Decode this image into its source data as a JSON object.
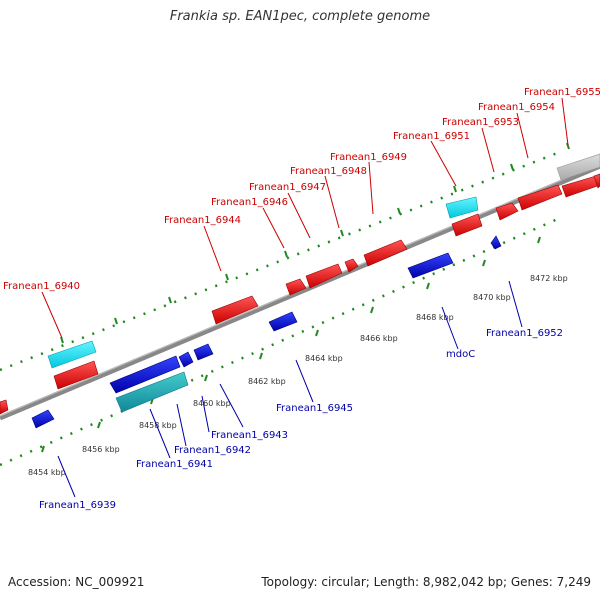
{
  "title": "Frankia sp. EAN1pec, complete genome",
  "accession": "Accession: NC_009921",
  "topology": "Topology: circular; Length: 8,982,042 bp; Genes: 7,249",
  "colors": {
    "forward": "#ee0000",
    "reverse": "#0000cc",
    "rna_forward": "#00e0f0",
    "rna_reverse": "#22bbcc",
    "backbone": "#999999",
    "tick": "#228822",
    "other": "#bbbbbb"
  },
  "ticks": [
    "8454 kbp",
    "8456 kbp",
    "8458 kbp",
    "8460 kbp",
    "8462 kbp",
    "8464 kbp",
    "8466 kbp",
    "8468 kbp",
    "8470 kbp",
    "8472 kbp"
  ],
  "top_labels": [
    "Franean1_6940",
    "Franean1_6944",
    "Franean1_6946",
    "Franean1_6947",
    "Franean1_6948",
    "Franean1_6949",
    "Franean1_6951",
    "Franean1_6953",
    "Franean1_6954",
    "Franean1_6955"
  ],
  "bottom_labels": [
    "Franean1_6939",
    "Franean1_6941",
    "Franean1_6942",
    "Franean1_6943",
    "Franean1_6945",
    "mdoC",
    "Franean1_6952"
  ]
}
